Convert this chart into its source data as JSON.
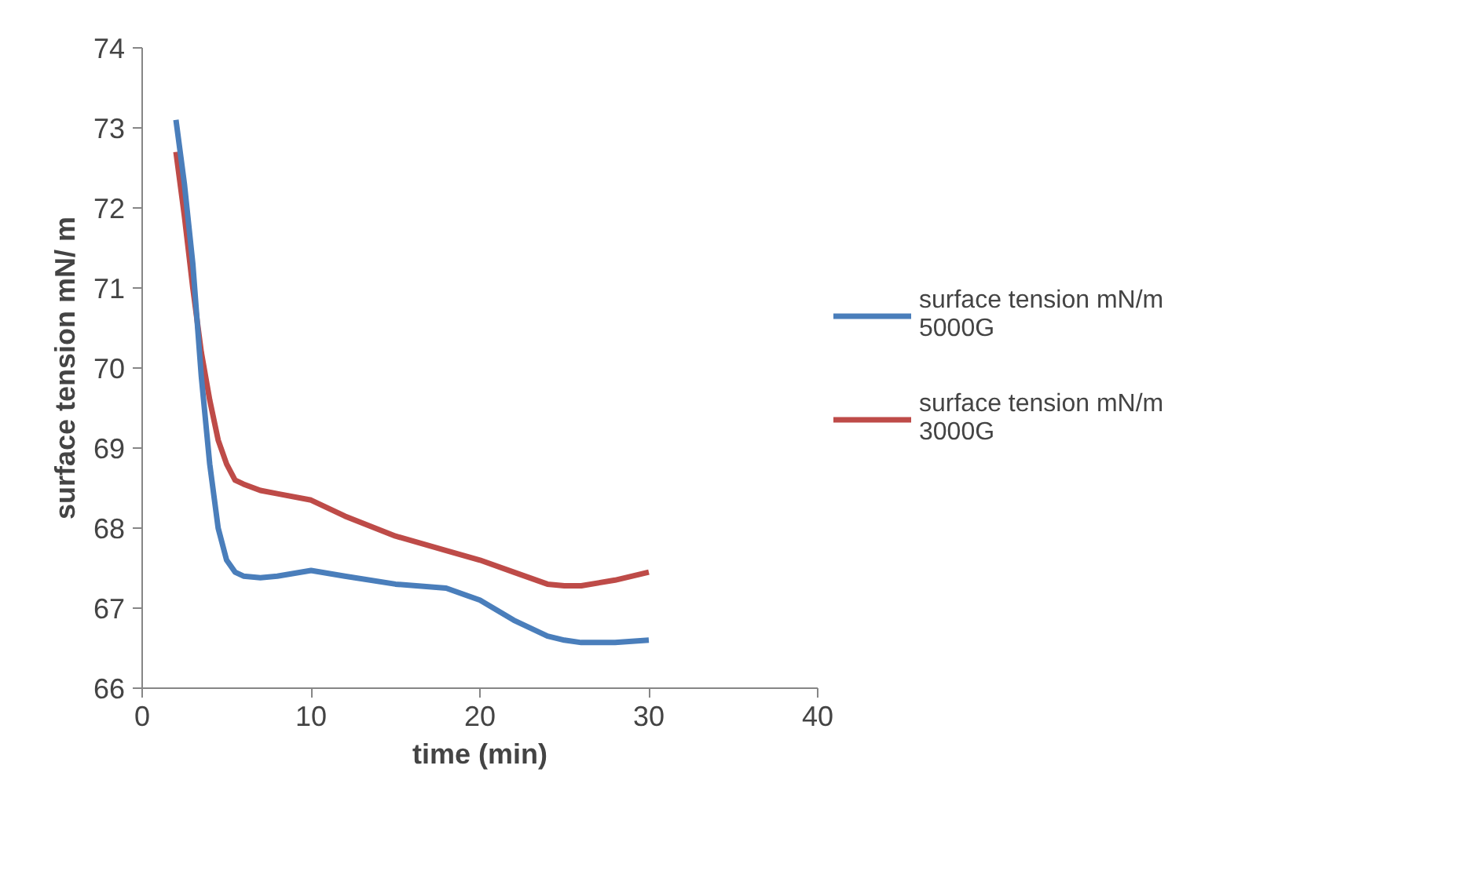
{
  "chart_data": {
    "type": "line",
    "xlabel": "time (min)",
    "ylabel": "surface tension mN/ m",
    "xlim": [
      0,
      40
    ],
    "xticks": [
      0,
      10,
      20,
      30,
      40
    ],
    "ylim": [
      66,
      74
    ],
    "yticks": [
      66,
      67,
      68,
      69,
      70,
      71,
      72,
      73,
      74
    ],
    "grid": false,
    "legend": "right",
    "line_style": "solid",
    "marker": "none",
    "series": [
      {
        "name": "surface tension mN/m 5000G",
        "color": "#4a7ebb",
        "x": [
          2,
          2.5,
          3,
          3.5,
          4,
          4.5,
          5,
          5.5,
          6,
          7,
          8,
          10,
          12,
          15,
          18,
          20,
          22,
          24,
          25,
          26,
          28,
          30
        ],
        "values": [
          73.1,
          72.3,
          71.3,
          69.9,
          68.8,
          68.0,
          67.6,
          67.45,
          67.4,
          67.38,
          67.4,
          67.47,
          67.4,
          67.3,
          67.25,
          67.1,
          66.85,
          66.65,
          66.6,
          66.57,
          66.57,
          66.6
        ]
      },
      {
        "name": "surface tension mN/m 3000G",
        "color": "#be4b48",
        "x": [
          2,
          2.5,
          3,
          3.5,
          4,
          4.5,
          5,
          5.5,
          6,
          7,
          8,
          10,
          12,
          15,
          18,
          20,
          22,
          24,
          25,
          26,
          28,
          30
        ],
        "values": [
          72.7,
          71.9,
          71.0,
          70.2,
          69.6,
          69.1,
          68.8,
          68.6,
          68.55,
          68.47,
          68.43,
          68.35,
          68.15,
          67.9,
          67.72,
          67.6,
          67.45,
          67.3,
          67.28,
          67.28,
          67.35,
          67.45
        ]
      }
    ]
  }
}
